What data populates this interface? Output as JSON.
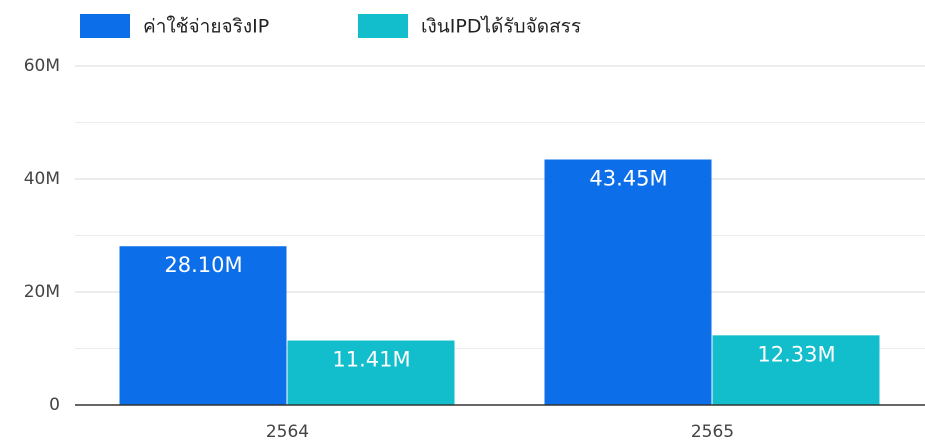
{
  "chart_data": {
    "type": "bar",
    "categories": [
      "2564",
      "2565"
    ],
    "series": [
      {
        "name": "ค่าใช้จ่ายจริงIP",
        "color": "#0c6ee8",
        "values": [
          28100000,
          43450000
        ],
        "value_labels": [
          "28.10M",
          "43.45M"
        ]
      },
      {
        "name": "เงินIPDได้รับจัดสรร",
        "color": "#12bdcc",
        "values": [
          11410000,
          12330000
        ],
        "value_labels": [
          "11.41M",
          "12.33M"
        ]
      }
    ],
    "ylim": [
      0,
      60000000
    ],
    "yticks": [
      0,
      {
        "value": 20000000,
        "label": "20M"
      },
      {
        "value": 40000000,
        "label": "40M"
      },
      {
        "value": 60000000,
        "label": "60M"
      }
    ],
    "minor_yticks": [
      10000000,
      30000000,
      50000000
    ],
    "grid": true,
    "legend": "top"
  }
}
